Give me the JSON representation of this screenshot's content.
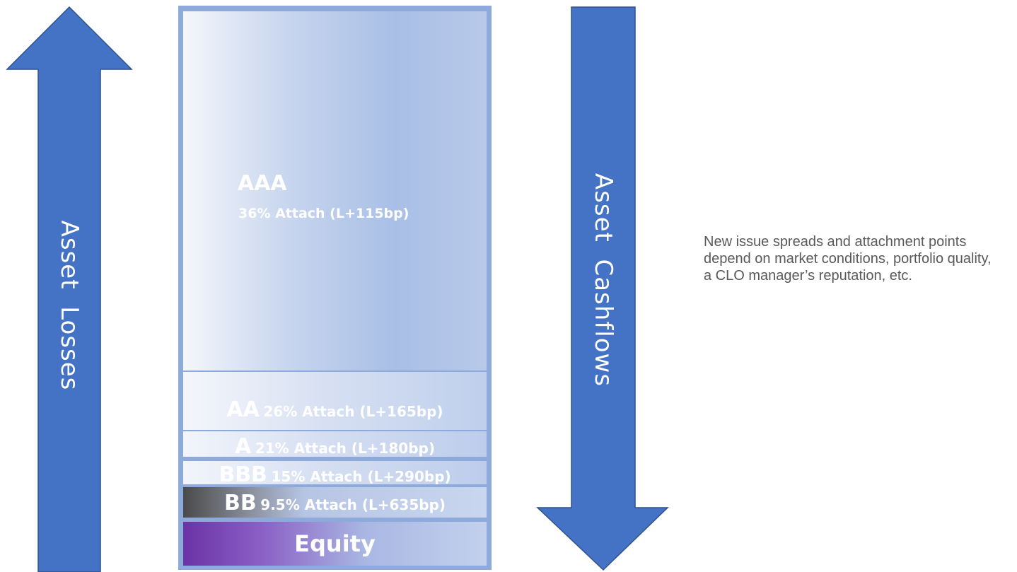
{
  "arrows": {
    "left": {
      "label": "Asset  Losses",
      "direction": "up",
      "icon": "up-arrow-icon",
      "color": "#4472c4"
    },
    "right": {
      "label": "Asset  Cashflows",
      "direction": "down",
      "icon": "down-arrow-icon",
      "color": "#4472c4"
    }
  },
  "tranches": {
    "aaa": {
      "name": "AAA",
      "detail": "36% Attach (L+115bp)"
    },
    "aa": {
      "name": "AA",
      "detail": "26% Attach (L+165bp)"
    },
    "a": {
      "name": "A",
      "detail": "21% Attach (L+180bp)"
    },
    "bbb": {
      "name": "BBB",
      "detail": "15% Attach (L+290bp)"
    },
    "bb": {
      "name": "BB",
      "detail": "9.5% Attach (L+635bp)"
    },
    "equity": {
      "name": "Equity"
    }
  },
  "note": "New issue spreads and attachment points depend on market conditions, portfolio quality, a CLO manager’s reputation, etc.",
  "colors": {
    "stack_border": "#8eaadb",
    "equity_accent": "#7030a0",
    "bb_accent": "#595959",
    "note_text": "#595959"
  }
}
